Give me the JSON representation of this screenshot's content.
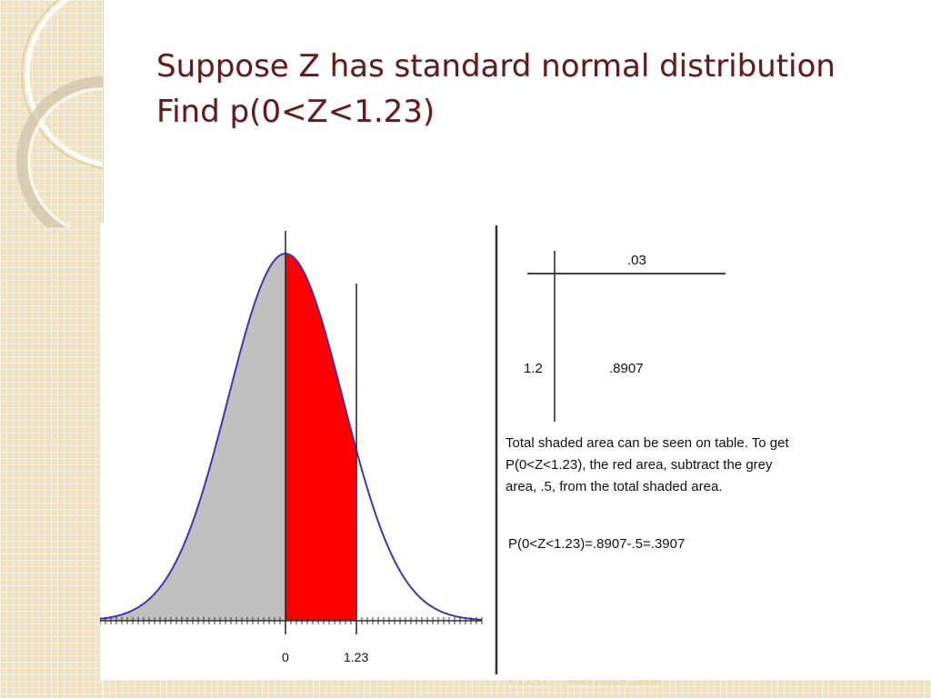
{
  "slide": {
    "title_lines": [
      "Suppose Z has standard normal distribution",
      "Find p(0<Z<1.23)"
    ],
    "footer": "C.I.T.S.C — Mona Hassan Zahran"
  },
  "table": {
    "column_header": ".03",
    "row_header": "1.2",
    "cell_value": ".8907"
  },
  "explanation": "Total shaded area can be seen on table. To get P(0<Z<1.23), the red area, subtract the grey area, .5, from the total shaded area.",
  "equation": "P(0<Z<1.23)=.8907-.5=.3907",
  "chart_data": {
    "type": "area",
    "x_ticks": [
      "0",
      "1.23"
    ],
    "shaded_regions": [
      {
        "from": "-inf",
        "to": 0,
        "color": "#c0c0c0"
      },
      {
        "from": 0,
        "to": 1.23,
        "color": "#ff0000"
      }
    ],
    "curve_color": "#3a3aa8"
  },
  "colors": {
    "title": "#5c1e1e",
    "grey_area": "#c0c0c0",
    "red_area": "#ff0000",
    "curve": "#3a3aa8"
  }
}
